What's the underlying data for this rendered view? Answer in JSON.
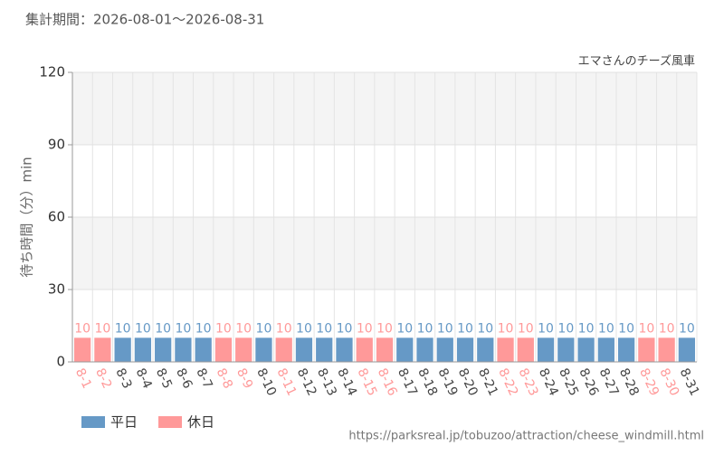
{
  "chart_data": {
    "type": "bar",
    "subtitle": "集計期間：2026-08-01～2026-08-31",
    "title": "エマさんのチーズ風車",
    "y_label": "待ち時間（分）min",
    "source": "https://parksreal.jp/tobuzoo/attraction/cheese_windmill.html",
    "categories": [
      "8-1",
      "8-2",
      "8-3",
      "8-4",
      "8-5",
      "8-6",
      "8-7",
      "8-8",
      "8-9",
      "8-10",
      "8-11",
      "8-12",
      "8-13",
      "8-14",
      "8-15",
      "8-16",
      "8-17",
      "8-18",
      "8-19",
      "8-20",
      "8-21",
      "8-22",
      "8-23",
      "8-24",
      "8-25",
      "8-26",
      "8-27",
      "8-28",
      "8-29",
      "8-30",
      "8-31"
    ],
    "series": [
      {
        "name": "平日",
        "color": "#6699c6",
        "values": [
          null,
          null,
          10,
          10,
          10,
          10,
          10,
          null,
          null,
          10,
          null,
          10,
          10,
          10,
          null,
          null,
          10,
          10,
          10,
          10,
          10,
          null,
          null,
          10,
          10,
          10,
          10,
          10,
          null,
          null,
          10
        ]
      },
      {
        "name": "休日",
        "color": "#ff9999",
        "values": [
          10,
          10,
          null,
          null,
          null,
          null,
          null,
          10,
          10,
          null,
          10,
          null,
          null,
          null,
          10,
          10,
          null,
          null,
          null,
          null,
          null,
          10,
          10,
          null,
          null,
          null,
          null,
          null,
          10,
          10,
          null
        ]
      }
    ],
    "ylim": [
      0,
      120
    ],
    "yticks": [
      0,
      30,
      60,
      90,
      120
    ],
    "grid": true
  }
}
